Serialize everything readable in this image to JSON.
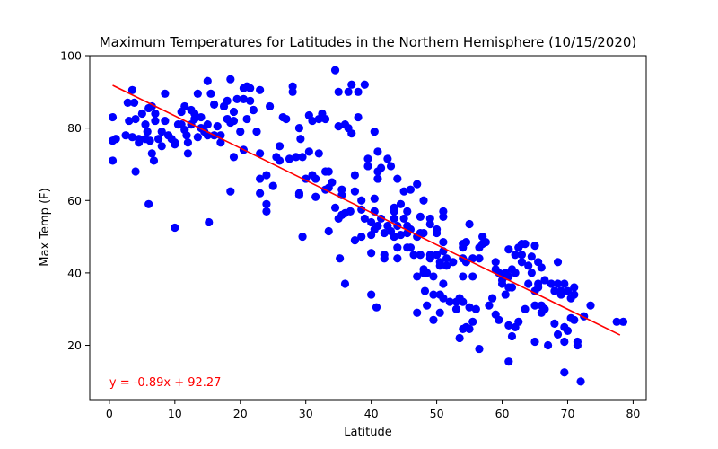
{
  "colors": {
    "points": "#0000ff",
    "regression": "#ff0000",
    "annotation": "#ff0000",
    "axis": "#000000",
    "background": "#ffffff"
  },
  "chart_data": {
    "type": "scatter",
    "title": "Maximum Temperatures for Latitudes in the Northern Hemisphere (10/15/2020)",
    "xlabel": "Latitude",
    "ylabel": "Max Temp (F)",
    "xlim": [
      -3,
      82
    ],
    "ylim": [
      5,
      100
    ],
    "xticks": [
      0,
      10,
      20,
      30,
      40,
      50,
      60,
      70,
      80
    ],
    "yticks": [
      20,
      40,
      60,
      80,
      100
    ],
    "grid": false,
    "regression": {
      "slope": -0.89,
      "intercept": 92.27,
      "x_range": [
        0.5,
        78
      ]
    },
    "annotation": "y = -0.89x + 92.27",
    "points": [
      [
        0.5,
        83
      ],
      [
        0.5,
        76.5
      ],
      [
        0.5,
        71
      ],
      [
        1,
        77
      ],
      [
        2.5,
        78
      ],
      [
        2.8,
        87
      ],
      [
        3,
        82
      ],
      [
        3.5,
        90.5
      ],
      [
        3.5,
        77.5
      ],
      [
        3.8,
        87
      ],
      [
        4,
        68
      ],
      [
        4,
        82.5
      ],
      [
        4.5,
        77
      ],
      [
        4.5,
        76
      ],
      [
        5,
        84
      ],
      [
        5.5,
        81
      ],
      [
        5.5,
        77
      ],
      [
        5.8,
        79
      ],
      [
        6,
        85.5
      ],
      [
        6,
        59
      ],
      [
        6.2,
        76.5
      ],
      [
        6.5,
        86
      ],
      [
        6.5,
        73
      ],
      [
        6.8,
        71
      ],
      [
        7,
        82
      ],
      [
        7,
        84
      ],
      [
        7.5,
        77
      ],
      [
        8,
        75
      ],
      [
        8,
        79
      ],
      [
        8.5,
        89.5
      ],
      [
        8.5,
        82
      ],
      [
        9,
        78
      ],
      [
        9.5,
        77
      ],
      [
        10,
        75.5
      ],
      [
        10,
        76
      ],
      [
        10,
        52.5
      ],
      [
        10.5,
        81
      ],
      [
        11,
        84.5
      ],
      [
        11,
        81
      ],
      [
        11.5,
        86
      ],
      [
        11.5,
        79.5
      ],
      [
        11.8,
        78
      ],
      [
        12,
        76
      ],
      [
        12,
        73
      ],
      [
        12.5,
        85
      ],
      [
        12.5,
        81
      ],
      [
        13,
        84
      ],
      [
        13,
        82.5
      ],
      [
        13.5,
        89.5
      ],
      [
        13.5,
        77.5
      ],
      [
        14,
        83
      ],
      [
        14,
        80
      ],
      [
        14.5,
        79
      ],
      [
        15,
        93
      ],
      [
        15,
        81
      ],
      [
        15,
        78
      ],
      [
        15.2,
        54
      ],
      [
        15.5,
        89.5
      ],
      [
        16,
        86.5
      ],
      [
        16,
        78
      ],
      [
        16.5,
        80.5
      ],
      [
        17,
        76
      ],
      [
        17,
        78
      ],
      [
        17.5,
        86
      ],
      [
        18,
        87.5
      ],
      [
        18,
        82.5
      ],
      [
        18.5,
        93.5
      ],
      [
        18.5,
        81.5
      ],
      [
        18.5,
        62.5
      ],
      [
        19,
        84.5
      ],
      [
        19,
        72
      ],
      [
        19,
        82
      ],
      [
        19.5,
        88
      ],
      [
        20,
        79
      ],
      [
        20.5,
        74
      ],
      [
        20.5,
        91
      ],
      [
        20.5,
        88
      ],
      [
        21,
        82.5
      ],
      [
        21,
        91.5
      ],
      [
        21.5,
        91
      ],
      [
        21.5,
        87.5
      ],
      [
        22,
        85
      ],
      [
        22,
        85
      ],
      [
        22.5,
        79
      ],
      [
        23,
        90.5
      ],
      [
        23,
        73
      ],
      [
        23,
        66
      ],
      [
        23,
        62
      ],
      [
        24,
        67
      ],
      [
        24,
        59
      ],
      [
        24,
        57
      ],
      [
        24.5,
        86
      ],
      [
        25,
        64
      ],
      [
        25.5,
        72
      ],
      [
        26,
        75
      ],
      [
        26,
        71
      ],
      [
        26.5,
        83
      ],
      [
        27,
        82.5
      ],
      [
        27.5,
        71.5
      ],
      [
        28,
        90
      ],
      [
        28,
        91.5
      ],
      [
        28.5,
        72
      ],
      [
        29,
        62
      ],
      [
        29,
        61.5
      ],
      [
        29,
        80
      ],
      [
        29.2,
        77
      ],
      [
        29.5,
        72
      ],
      [
        29.5,
        50
      ],
      [
        30,
        66
      ],
      [
        30.5,
        73.5
      ],
      [
        30.5,
        83.5
      ],
      [
        31,
        82
      ],
      [
        31,
        67
      ],
      [
        31.5,
        61
      ],
      [
        31.5,
        66
      ],
      [
        32,
        73
      ],
      [
        32,
        82.5
      ],
      [
        32.5,
        84
      ],
      [
        33,
        82.5
      ],
      [
        33,
        68
      ],
      [
        33,
        63
      ],
      [
        33.5,
        68
      ],
      [
        33.5,
        51.5
      ],
      [
        33.5,
        63.5
      ],
      [
        34,
        65
      ],
      [
        34.5,
        96
      ],
      [
        34.5,
        58
      ],
      [
        35,
        90
      ],
      [
        35,
        80.5
      ],
      [
        35,
        55
      ],
      [
        35.2,
        44
      ],
      [
        35.5,
        63
      ],
      [
        35.5,
        61.5
      ],
      [
        35.5,
        56
      ],
      [
        36,
        81
      ],
      [
        36,
        56.5
      ],
      [
        36,
        37
      ],
      [
        36.5,
        90
      ],
      [
        36.5,
        80
      ],
      [
        36.8,
        57
      ],
      [
        37,
        78.5
      ],
      [
        37,
        92
      ],
      [
        37.5,
        49
      ],
      [
        37.5,
        62.5
      ],
      [
        37.5,
        67
      ],
      [
        38,
        83
      ],
      [
        38,
        90
      ],
      [
        38.5,
        50
      ],
      [
        38.5,
        60
      ],
      [
        38.5,
        57.5
      ],
      [
        39,
        92
      ],
      [
        39,
        55
      ],
      [
        39.5,
        69.5
      ],
      [
        39.5,
        71.5
      ],
      [
        40,
        54
      ],
      [
        40,
        50.5
      ],
      [
        40,
        45.5
      ],
      [
        40,
        34
      ],
      [
        40.5,
        60.5
      ],
      [
        40.5,
        79
      ],
      [
        40.5,
        57
      ],
      [
        40.5,
        52
      ],
      [
        40.8,
        30.5
      ],
      [
        41,
        53
      ],
      [
        41,
        66
      ],
      [
        41,
        73.5
      ],
      [
        41,
        68
      ],
      [
        41.5,
        69
      ],
      [
        41.5,
        55
      ],
      [
        42,
        45
      ],
      [
        42,
        44
      ],
      [
        42,
        51
      ],
      [
        42.5,
        71.5
      ],
      [
        42.5,
        53
      ],
      [
        43,
        51.5
      ],
      [
        43,
        69.5
      ],
      [
        43.5,
        58
      ],
      [
        43.5,
        57
      ],
      [
        43.5,
        55
      ],
      [
        43.5,
        50
      ],
      [
        44,
        66
      ],
      [
        44,
        53
      ],
      [
        44,
        47
      ],
      [
        44,
        44
      ],
      [
        44.5,
        59
      ],
      [
        44.5,
        50.5
      ],
      [
        45,
        62.5
      ],
      [
        45,
        55
      ],
      [
        45.5,
        57
      ],
      [
        45.5,
        53
      ],
      [
        45.5,
        51
      ],
      [
        45.5,
        47
      ],
      [
        46,
        63
      ],
      [
        46,
        52
      ],
      [
        46,
        47
      ],
      [
        46.5,
        45
      ],
      [
        47,
        64.5
      ],
      [
        47,
        50
      ],
      [
        47,
        39
      ],
      [
        47,
        29
      ],
      [
        47.5,
        55.5
      ],
      [
        47.5,
        51
      ],
      [
        47.5,
        45
      ],
      [
        48,
        60
      ],
      [
        48,
        51
      ],
      [
        48,
        41
      ],
      [
        48,
        40
      ],
      [
        48.2,
        35
      ],
      [
        48.5,
        40
      ],
      [
        48.5,
        31
      ],
      [
        49,
        55
      ],
      [
        49,
        53.5
      ],
      [
        49,
        45
      ],
      [
        49,
        44
      ],
      [
        49.5,
        39
      ],
      [
        49.5,
        34
      ],
      [
        49.5,
        27
      ],
      [
        50,
        52
      ],
      [
        50,
        51
      ],
      [
        50,
        45
      ],
      [
        50.5,
        43
      ],
      [
        50.5,
        42
      ],
      [
        50.5,
        34
      ],
      [
        50.5,
        29
      ],
      [
        51,
        55.5
      ],
      [
        51,
        57
      ],
      [
        51,
        48.5
      ],
      [
        51,
        46
      ],
      [
        51,
        37
      ],
      [
        51,
        33
      ],
      [
        51.5,
        44
      ],
      [
        51.5,
        42
      ],
      [
        52,
        32
      ],
      [
        52.5,
        43
      ],
      [
        53,
        32
      ],
      [
        53,
        30
      ],
      [
        53.5,
        33
      ],
      [
        53.5,
        22
      ],
      [
        54,
        48
      ],
      [
        54,
        47
      ],
      [
        54,
        44
      ],
      [
        54,
        39
      ],
      [
        54,
        32
      ],
      [
        54,
        24.5
      ],
      [
        54.5,
        48.5
      ],
      [
        54.5,
        43
      ],
      [
        54.5,
        25
      ],
      [
        55,
        53.5
      ],
      [
        55,
        30.5
      ],
      [
        55,
        24.5
      ],
      [
        55.5,
        44
      ],
      [
        55.5,
        39
      ],
      [
        55.5,
        26.5
      ],
      [
        56,
        30
      ],
      [
        56.5,
        47
      ],
      [
        56.5,
        44
      ],
      [
        56.5,
        19
      ],
      [
        57,
        50
      ],
      [
        57,
        48
      ],
      [
        57.5,
        48.5
      ],
      [
        58,
        31
      ],
      [
        58.5,
        33
      ],
      [
        59,
        43
      ],
      [
        59,
        41
      ],
      [
        59,
        28.5
      ],
      [
        59.5,
        40
      ],
      [
        59.5,
        27
      ],
      [
        60,
        38
      ],
      [
        60,
        37
      ],
      [
        60.5,
        40
      ],
      [
        60.5,
        39
      ],
      [
        60.5,
        34
      ],
      [
        61,
        46.5
      ],
      [
        61,
        39
      ],
      [
        61,
        36
      ],
      [
        61,
        25.5
      ],
      [
        61,
        15.5
      ],
      [
        61.5,
        41
      ],
      [
        61.5,
        36
      ],
      [
        61.5,
        22.5
      ],
      [
        62,
        45
      ],
      [
        62,
        40
      ],
      [
        62,
        25
      ],
      [
        62.5,
        47
      ],
      [
        62.5,
        26.5
      ],
      [
        63,
        48
      ],
      [
        63,
        45
      ],
      [
        63,
        43
      ],
      [
        63.5,
        48
      ],
      [
        63.5,
        30
      ],
      [
        64,
        42
      ],
      [
        64,
        37
      ],
      [
        64.5,
        44.5
      ],
      [
        64.5,
        40
      ],
      [
        65,
        47.5
      ],
      [
        65,
        35
      ],
      [
        65,
        31
      ],
      [
        65,
        21
      ],
      [
        65.5,
        43
      ],
      [
        65.5,
        37
      ],
      [
        65.5,
        36
      ],
      [
        66,
        41.5
      ],
      [
        66,
        31
      ],
      [
        66,
        29
      ],
      [
        66.5,
        38
      ],
      [
        66.5,
        30
      ],
      [
        67,
        20
      ],
      [
        67.5,
        37
      ],
      [
        68,
        35
      ],
      [
        68,
        26
      ],
      [
        68.5,
        43
      ],
      [
        68.5,
        37
      ],
      [
        68.5,
        23
      ],
      [
        69,
        35
      ],
      [
        69,
        34
      ],
      [
        69.5,
        37
      ],
      [
        69.5,
        25
      ],
      [
        69.5,
        21
      ],
      [
        69.5,
        12.5
      ],
      [
        70,
        35
      ],
      [
        70,
        24
      ],
      [
        70.5,
        33
      ],
      [
        70.5,
        27.5
      ],
      [
        71,
        36
      ],
      [
        71,
        34
      ],
      [
        71,
        27
      ],
      [
        71.5,
        21
      ],
      [
        71.5,
        20
      ],
      [
        72,
        10
      ],
      [
        72.5,
        28
      ],
      [
        73.5,
        31
      ],
      [
        77.5,
        26.5
      ],
      [
        78.5,
        26.5
      ]
    ]
  }
}
